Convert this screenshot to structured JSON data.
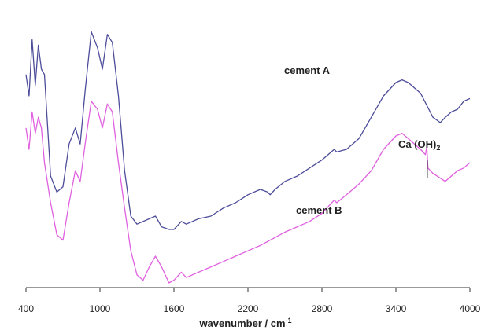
{
  "chart_data": {
    "type": "line",
    "xlabel": "wavenumber / cm",
    "xlabel_superscript": "-1",
    "xlim": [
      400,
      4000
    ],
    "x_ticks": [
      400,
      1000,
      1600,
      2200,
      2800,
      3400,
      4000
    ],
    "yaxis": "none",
    "grid": false,
    "legend": "none",
    "series": [
      {
        "name": "cement A",
        "color": "#4d4d9a",
        "points": [
          [
            400,
            0.78
          ],
          [
            425,
            0.7
          ],
          [
            450,
            0.91
          ],
          [
            475,
            0.74
          ],
          [
            500,
            0.89
          ],
          [
            525,
            0.8
          ],
          [
            550,
            0.78
          ],
          [
            600,
            0.4
          ],
          [
            650,
            0.34
          ],
          [
            700,
            0.36
          ],
          [
            750,
            0.52
          ],
          [
            800,
            0.58
          ],
          [
            840,
            0.52
          ],
          [
            880,
            0.72
          ],
          [
            930,
            0.94
          ],
          [
            980,
            0.88
          ],
          [
            1020,
            0.8
          ],
          [
            1060,
            0.93
          ],
          [
            1100,
            0.9
          ],
          [
            1150,
            0.7
          ],
          [
            1200,
            0.42
          ],
          [
            1250,
            0.25
          ],
          [
            1300,
            0.22
          ],
          [
            1400,
            0.24
          ],
          [
            1450,
            0.25
          ],
          [
            1500,
            0.21
          ],
          [
            1560,
            0.2
          ],
          [
            1600,
            0.2
          ],
          [
            1660,
            0.23
          ],
          [
            1700,
            0.22
          ],
          [
            1800,
            0.24
          ],
          [
            1900,
            0.25
          ],
          [
            2000,
            0.28
          ],
          [
            2100,
            0.3
          ],
          [
            2200,
            0.33
          ],
          [
            2300,
            0.35
          ],
          [
            2360,
            0.34
          ],
          [
            2380,
            0.33
          ],
          [
            2420,
            0.35
          ],
          [
            2500,
            0.38
          ],
          [
            2600,
            0.4
          ],
          [
            2700,
            0.43
          ],
          [
            2800,
            0.46
          ],
          [
            2900,
            0.5
          ],
          [
            2920,
            0.49
          ],
          [
            3000,
            0.5
          ],
          [
            3100,
            0.54
          ],
          [
            3200,
            0.62
          ],
          [
            3300,
            0.7
          ],
          [
            3400,
            0.75
          ],
          [
            3450,
            0.76
          ],
          [
            3500,
            0.75
          ],
          [
            3600,
            0.71
          ],
          [
            3700,
            0.62
          ],
          [
            3760,
            0.6
          ],
          [
            3800,
            0.62
          ],
          [
            3850,
            0.64
          ],
          [
            3900,
            0.65
          ],
          [
            3950,
            0.68
          ],
          [
            4000,
            0.69
          ]
        ]
      },
      {
        "name": "cement B",
        "color": "#e060e0",
        "points": [
          [
            400,
            0.58
          ],
          [
            425,
            0.5
          ],
          [
            450,
            0.64
          ],
          [
            475,
            0.56
          ],
          [
            500,
            0.62
          ],
          [
            525,
            0.58
          ],
          [
            550,
            0.45
          ],
          [
            600,
            0.3
          ],
          [
            650,
            0.18
          ],
          [
            700,
            0.16
          ],
          [
            750,
            0.3
          ],
          [
            800,
            0.42
          ],
          [
            840,
            0.38
          ],
          [
            880,
            0.52
          ],
          [
            930,
            0.68
          ],
          [
            980,
            0.65
          ],
          [
            1020,
            0.58
          ],
          [
            1060,
            0.67
          ],
          [
            1100,
            0.64
          ],
          [
            1150,
            0.45
          ],
          [
            1200,
            0.28
          ],
          [
            1250,
            0.12
          ],
          [
            1300,
            0.03
          ],
          [
            1350,
            0.01
          ],
          [
            1400,
            0.06
          ],
          [
            1450,
            0.1
          ],
          [
            1500,
            0.06
          ],
          [
            1560,
            0.0
          ],
          [
            1600,
            0.01
          ],
          [
            1660,
            0.04
          ],
          [
            1700,
            0.02
          ],
          [
            1800,
            0.04
          ],
          [
            1900,
            0.06
          ],
          [
            2000,
            0.08
          ],
          [
            2100,
            0.1
          ],
          [
            2200,
            0.12
          ],
          [
            2300,
            0.14
          ],
          [
            2380,
            0.16
          ],
          [
            2500,
            0.19
          ],
          [
            2600,
            0.21
          ],
          [
            2700,
            0.23
          ],
          [
            2800,
            0.26
          ],
          [
            2900,
            0.31
          ],
          [
            2920,
            0.3
          ],
          [
            3000,
            0.33
          ],
          [
            3100,
            0.37
          ],
          [
            3200,
            0.42
          ],
          [
            3300,
            0.5
          ],
          [
            3400,
            0.55
          ],
          [
            3450,
            0.56
          ],
          [
            3500,
            0.54
          ],
          [
            3600,
            0.5
          ],
          [
            3640,
            0.48
          ],
          [
            3650,
            0.51
          ],
          [
            3660,
            0.43
          ],
          [
            3700,
            0.41
          ],
          [
            3800,
            0.38
          ],
          [
            3900,
            0.42
          ],
          [
            3950,
            0.43
          ],
          [
            4000,
            0.45
          ]
        ]
      }
    ],
    "labels": {
      "cement_a": "cement A",
      "cement_b": "cement B",
      "caoh2": "Ca (OH)",
      "caoh2_subscript": "2"
    },
    "annotations": [
      {
        "text": "Ca (OH)2",
        "x": 3650
      }
    ]
  }
}
